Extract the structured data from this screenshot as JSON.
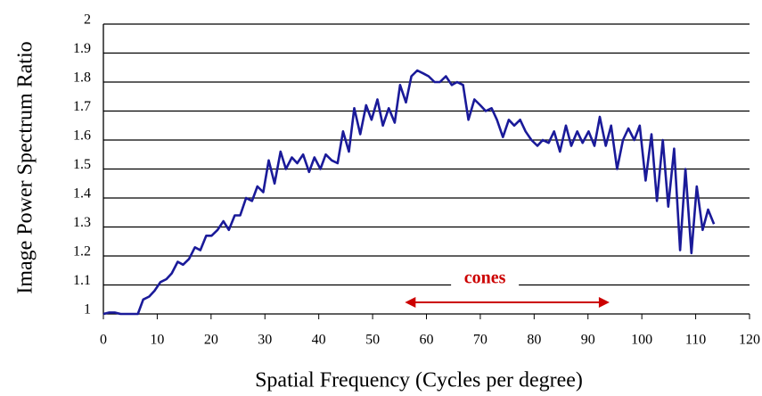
{
  "chart_data": {
    "type": "line",
    "x_label": "Spatial Frequency (Cycles per degree)",
    "y_label": "Image Power Spectrum Ratio",
    "xlim": [
      0,
      120
    ],
    "xticks": [
      0,
      10,
      20,
      30,
      40,
      50,
      60,
      70,
      80,
      90,
      100,
      110,
      120
    ],
    "ylim": [
      1,
      2
    ],
    "yticks": [
      1,
      1.1,
      1.2,
      1.3,
      1.4,
      1.5,
      1.6,
      1.7,
      1.8,
      1.9,
      2
    ],
    "grid": true,
    "series": [
      {
        "color": "#1a1a99",
        "x": [
          0,
          1.1,
          2.1,
          3.2,
          4.2,
          5.3,
          6.4,
          7.4,
          8.5,
          9.5,
          10.6,
          11.7,
          12.7,
          13.8,
          14.8,
          15.9,
          17,
          18,
          19.1,
          20.1,
          21.2,
          22.3,
          23.3,
          24.4,
          25.4,
          26.5,
          27.6,
          28.6,
          29.7,
          30.7,
          31.8,
          32.9,
          33.9,
          35,
          36,
          37.1,
          38.2,
          39.2,
          40.3,
          41.3,
          42.4,
          43.5,
          44.5,
          45.6,
          46.6,
          47.7,
          48.8,
          49.8,
          50.9,
          51.9,
          53,
          54.1,
          55.1,
          56.2,
          57.2,
          58.3,
          59.4,
          60.4,
          61.5,
          62.5,
          63.6,
          64.7,
          65.7,
          66.8,
          67.8,
          68.9,
          70,
          71,
          72.1,
          73.1,
          74.2,
          75.3,
          76.3,
          77.4,
          78.4,
          79.5,
          80.6,
          81.6,
          82.7,
          83.7,
          84.8,
          85.9,
          86.9,
          88,
          89,
          90.1,
          91.2,
          92.2,
          93.3,
          94.3,
          95.4,
          96.5,
          97.5,
          98.6,
          99.6,
          100.7,
          101.8,
          102.8,
          103.9,
          104.9,
          106,
          107.1,
          108.1,
          109.2,
          110.2,
          111.3,
          112.3,
          113.4
        ],
        "values": [
          1.0,
          1.005,
          1.005,
          1.0,
          1.0,
          1.0,
          1.0,
          1.05,
          1.06,
          1.08,
          1.11,
          1.12,
          1.14,
          1.18,
          1.17,
          1.19,
          1.23,
          1.22,
          1.27,
          1.27,
          1.29,
          1.32,
          1.29,
          1.34,
          1.34,
          1.4,
          1.39,
          1.44,
          1.42,
          1.53,
          1.45,
          1.56,
          1.5,
          1.54,
          1.52,
          1.55,
          1.49,
          1.54,
          1.5,
          1.55,
          1.53,
          1.52,
          1.63,
          1.56,
          1.71,
          1.62,
          1.72,
          1.67,
          1.74,
          1.65,
          1.71,
          1.66,
          1.79,
          1.73,
          1.82,
          1.84,
          1.83,
          1.82,
          1.8,
          1.8,
          1.82,
          1.79,
          1.8,
          1.79,
          1.67,
          1.74,
          1.72,
          1.7,
          1.71,
          1.67,
          1.61,
          1.67,
          1.65,
          1.67,
          1.63,
          1.6,
          1.58,
          1.6,
          1.59,
          1.63,
          1.56,
          1.65,
          1.58,
          1.63,
          1.59,
          1.63,
          1.58,
          1.68,
          1.58,
          1.65,
          1.5,
          1.6,
          1.64,
          1.6,
          1.65,
          1.46,
          1.62,
          1.39,
          1.6,
          1.37,
          1.57,
          1.22,
          1.5,
          1.21,
          1.44,
          1.29,
          1.36,
          1.31
        ]
      }
    ],
    "annotation": {
      "text": "cones",
      "color": "#cc0000",
      "x_start": 56,
      "x_end": 94,
      "y": 1.04
    }
  }
}
